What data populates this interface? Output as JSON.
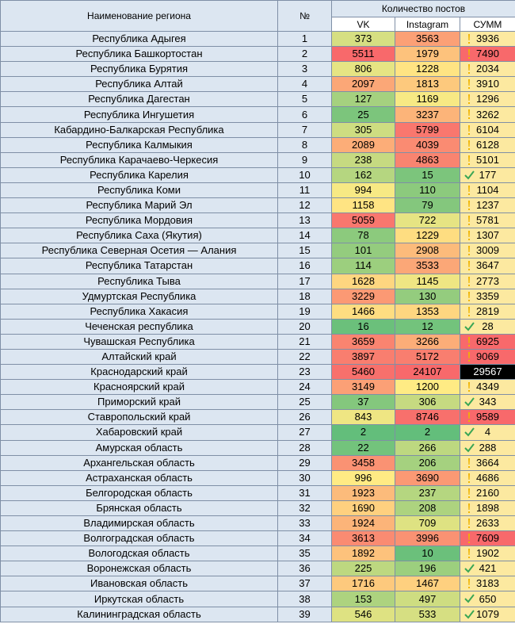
{
  "table": {
    "header": {
      "name": "Наименование региона",
      "num": "№",
      "posts": "Количество постов",
      "vk": "VK",
      "instagram": "Instagram",
      "sum": "СУММ"
    },
    "rows": [
      [
        "Республика Адыгея",
        1,
        373,
        3563,
        3936
      ],
      [
        "Республика Башкортостан",
        2,
        5511,
        1979,
        7490
      ],
      [
        "Республика Бурятия",
        3,
        806,
        1228,
        2034
      ],
      [
        "Республика Алтай",
        4,
        2097,
        1813,
        3910
      ],
      [
        "Республика Дагестан",
        5,
        127,
        1169,
        1296
      ],
      [
        "Республика Ингушетия",
        6,
        25,
        3237,
        3262
      ],
      [
        "Кабардино-Балкарская Республика",
        7,
        305,
        5799,
        6104
      ],
      [
        "Республика Калмыкия",
        8,
        2089,
        4039,
        6128
      ],
      [
        "Республика Карачаево-Черкесия",
        9,
        238,
        4863,
        5101
      ],
      [
        "Республика Карелия",
        10,
        162,
        15,
        177
      ],
      [
        "Республика Коми",
        11,
        994,
        110,
        1104
      ],
      [
        "Республика Марий Эл",
        12,
        1158,
        79,
        1237
      ],
      [
        "Республика Мордовия",
        13,
        5059,
        722,
        5781
      ],
      [
        "Республика Саха (Якутия)",
        14,
        78,
        1229,
        1307
      ],
      [
        "Республика Северная Осетия — Алания",
        15,
        101,
        2908,
        3009
      ],
      [
        "Республика Татарстан",
        16,
        114,
        3533,
        3647
      ],
      [
        "Республика Тыва",
        17,
        1628,
        1145,
        2773
      ],
      [
        "Удмуртская Республика",
        18,
        3229,
        130,
        3359
      ],
      [
        "Республика Хакасия",
        19,
        1466,
        1353,
        2819
      ],
      [
        "Чеченская республика",
        20,
        16,
        12,
        28
      ],
      [
        "Чувашская Республика",
        21,
        3659,
        3266,
        6925
      ],
      [
        "Алтайский край",
        22,
        3897,
        5172,
        9069
      ],
      [
        "Краснодарский край",
        23,
        5460,
        24107,
        29567
      ],
      [
        "Красноярский край",
        24,
        3149,
        1200,
        4349
      ],
      [
        "Приморский край",
        25,
        37,
        306,
        343
      ],
      [
        "Ставропольский край",
        26,
        843,
        8746,
        9589
      ],
      [
        "Хабаровский край",
        27,
        2,
        2,
        4
      ],
      [
        "Амурская область",
        28,
        22,
        266,
        288
      ],
      [
        "Архангельская область",
        29,
        3458,
        206,
        3664
      ],
      [
        "Астраханская область",
        30,
        996,
        3690,
        4686
      ],
      [
        "Белгородская область",
        31,
        1923,
        237,
        2160
      ],
      [
        "Брянская область",
        32,
        1690,
        208,
        1898
      ],
      [
        "Владимирская область",
        33,
        1924,
        709,
        2633
      ],
      [
        "Волгоградская область",
        34,
        3613,
        3996,
        7609
      ],
      [
        "Вологодская область",
        35,
        1892,
        10,
        1902
      ],
      [
        "Воронежская область",
        36,
        225,
        196,
        421
      ],
      [
        "Ивановская область",
        37,
        1716,
        1467,
        3183
      ],
      [
        "Иркутская область",
        38,
        153,
        497,
        650
      ],
      [
        "Калининградская область",
        39,
        546,
        533,
        1079
      ]
    ]
  }
}
